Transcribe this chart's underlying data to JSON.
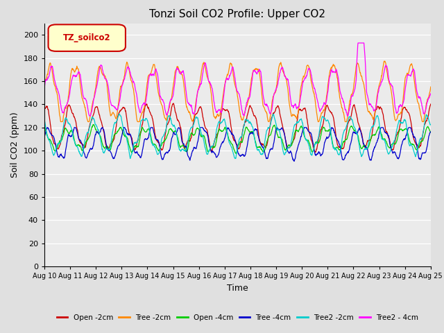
{
  "title": "Tonzi Soil CO2 Profile: Upper CO2",
  "xlabel": "Time",
  "ylabel": "Soil CO2 (ppm)",
  "ylim": [
    0,
    210
  ],
  "yticks": [
    0,
    20,
    40,
    60,
    80,
    100,
    120,
    140,
    160,
    180,
    200
  ],
  "n_points": 1500,
  "series": {
    "Open -2cm": {
      "color": "#cc0000"
    },
    "Tree -2cm": {
      "color": "#ff8800"
    },
    "Open -4cm": {
      "color": "#00cc00"
    },
    "Tree -4cm": {
      "color": "#0000cc"
    },
    "Tree2 -2cm": {
      "color": "#00cccc"
    },
    "Tree2 - 4cm": {
      "color": "#ff00ff"
    }
  },
  "legend_label": "TZ_soilco2",
  "legend_box_facecolor": "#ffffcc",
  "legend_box_edgecolor": "#cc0000",
  "bg_color": "#e0e0e0",
  "plot_bg_color": "#ebebeb",
  "title_fontsize": 11,
  "axis_fontsize": 9,
  "tick_fontsize": 8
}
